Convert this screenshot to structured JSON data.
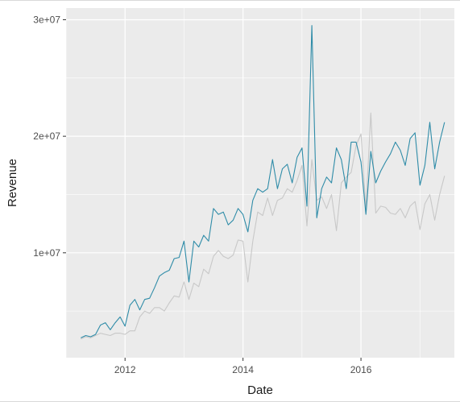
{
  "chart_data": {
    "type": "line",
    "title": "",
    "xlabel": "Date",
    "ylabel": "Revenue",
    "x_ticks": [
      "2012",
      "2014",
      "2016"
    ],
    "y_ticks": [
      "1e+07",
      "2e+07",
      "3e+07"
    ],
    "y_tick_values": [
      10000000,
      20000000,
      30000000
    ],
    "xlim": [
      "2011-01",
      "2017-08"
    ],
    "ylim": [
      1000000,
      31000000
    ],
    "grid": true,
    "legend": "none",
    "colors": {
      "panel_background": "#ebebeb",
      "grid": "#ffffff",
      "series_1": "#2f8ca8",
      "series_2": "#c8c8c8"
    },
    "x": [
      "2011-04",
      "2011-05",
      "2011-06",
      "2011-07",
      "2011-08",
      "2011-09",
      "2011-10",
      "2011-11",
      "2011-12",
      "2012-01",
      "2012-02",
      "2012-03",
      "2012-04",
      "2012-05",
      "2012-06",
      "2012-07",
      "2012-08",
      "2012-09",
      "2012-10",
      "2012-11",
      "2012-12",
      "2013-01",
      "2013-02",
      "2013-03",
      "2013-04",
      "2013-05",
      "2013-06",
      "2013-07",
      "2013-08",
      "2013-09",
      "2013-10",
      "2013-11",
      "2013-12",
      "2014-01",
      "2014-02",
      "2014-03",
      "2014-04",
      "2014-05",
      "2014-06",
      "2014-07",
      "2014-08",
      "2014-09",
      "2014-10",
      "2014-11",
      "2014-12",
      "2015-01",
      "2015-02",
      "2015-03",
      "2015-04",
      "2015-05",
      "2015-06",
      "2015-07",
      "2015-08",
      "2015-09",
      "2015-10",
      "2015-11",
      "2015-12",
      "2016-01",
      "2016-02",
      "2016-03",
      "2016-04",
      "2016-05",
      "2016-06",
      "2016-07",
      "2016-08",
      "2016-09",
      "2016-10",
      "2016-11",
      "2016-12",
      "2017-01",
      "2017-02",
      "2017-03",
      "2017-04",
      "2017-05",
      "2017-06"
    ],
    "series": [
      {
        "color": "#2f8ca8",
        "values": [
          2700000,
          2900000,
          2800000,
          3000000,
          3800000,
          4000000,
          3400000,
          4000000,
          4500000,
          3700000,
          5500000,
          6000000,
          5100000,
          6000000,
          6100000,
          7000000,
          8000000,
          8300000,
          8500000,
          9500000,
          9600000,
          11000000,
          7500000,
          11000000,
          10500000,
          11500000,
          11000000,
          13800000,
          13300000,
          13500000,
          12400000,
          12800000,
          13800000,
          13300000,
          11800000,
          14500000,
          15500000,
          15200000,
          15500000,
          18000000,
          15500000,
          17200000,
          17600000,
          16000000,
          18200000,
          19000000,
          14000000,
          29500000,
          13000000,
          15500000,
          16500000,
          16000000,
          19000000,
          18000000,
          15500000,
          19500000,
          19500000,
          17800000,
          13300000,
          18700000,
          16000000,
          17000000,
          17800000,
          18500000,
          19500000,
          18800000,
          17500000,
          19800000,
          20300000,
          15800000,
          17500000,
          21200000,
          17200000,
          19500000,
          21200000
        ]
      },
      {
        "color": "#c8c8c8",
        "values": [
          2600000,
          2800000,
          2700000,
          2900000,
          3100000,
          3000000,
          2900000,
          3100000,
          3100000,
          3000000,
          3300000,
          3300000,
          4500000,
          5000000,
          4800000,
          5300000,
          5300000,
          5000000,
          5700000,
          6300000,
          6200000,
          7500000,
          6000000,
          7400000,
          7100000,
          8600000,
          8200000,
          9700000,
          10200000,
          9700000,
          9500000,
          9800000,
          11100000,
          11000000,
          7500000,
          11000000,
          13500000,
          13200000,
          14700000,
          13200000,
          14500000,
          14700000,
          15500000,
          15200000,
          16200000,
          17500000,
          12300000,
          18000000,
          14500000,
          14800000,
          13800000,
          15000000,
          11900000,
          16000000,
          16500000,
          16900000,
          19200000,
          20200000,
          13800000,
          22000000,
          13400000,
          14000000,
          13900000,
          13400000,
          13300000,
          13800000,
          13000000,
          14000000,
          14400000,
          12000000,
          14200000,
          15000000,
          12800000,
          15000000,
          16600000
        ]
      }
    ]
  }
}
